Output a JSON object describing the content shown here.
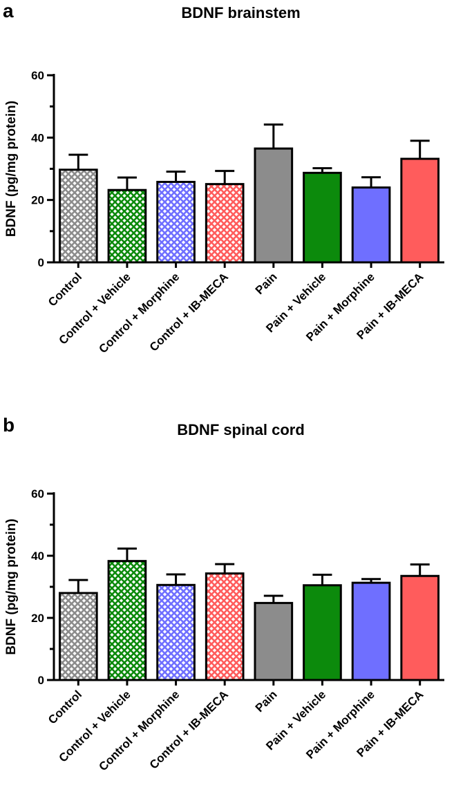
{
  "chart_data": [
    {
      "type": "bar",
      "panel_label": "a",
      "title": "BDNF brainstem",
      "xlabel": "",
      "ylabel": "BDNF (pg/mg protein)",
      "ylim": [
        0,
        60
      ],
      "yticks": [
        0,
        20,
        40,
        60
      ],
      "categories": [
        "Control",
        "Control + Vehicle",
        "Control + Morphine",
        "Control + IB-MECA",
        "Pain",
        "Pain + Vehicle",
        "Pain + Morphine",
        "Pain + IB-MECA"
      ],
      "values": [
        29.7,
        23.2,
        25.8,
        25.1,
        36.5,
        28.7,
        24.0,
        33.2
      ],
      "errors": [
        4.8,
        4.0,
        3.3,
        4.2,
        7.7,
        1.5,
        3.3,
        5.8
      ],
      "colors": [
        "#8c8c8c",
        "#0c8a0c",
        "#6f6fff",
        "#ff5c5c",
        "#8c8c8c",
        "#0c8a0c",
        "#6f6fff",
        "#ff5c5c"
      ],
      "hatched": [
        true,
        true,
        true,
        true,
        false,
        false,
        false,
        false
      ],
      "grid": false,
      "legend": "none"
    },
    {
      "type": "bar",
      "panel_label": "b",
      "title": "BDNF spinal cord",
      "xlabel": "",
      "ylabel": "BDNF (pg/mg protein)",
      "ylim": [
        0,
        60
      ],
      "yticks": [
        0,
        20,
        40,
        60
      ],
      "categories": [
        "Control",
        "Control + Vehicle",
        "Control + Morphine",
        "Control + IB-MECA",
        "Pain",
        "Pain + Vehicle",
        "Pain + Morphine",
        "Pain + IB-MECA"
      ],
      "values": [
        28.0,
        38.3,
        30.6,
        34.3,
        24.8,
        30.5,
        31.3,
        33.5
      ],
      "errors": [
        4.2,
        4.0,
        3.4,
        3.0,
        2.3,
        3.4,
        1.2,
        3.7
      ],
      "colors": [
        "#8c8c8c",
        "#0c8a0c",
        "#6f6fff",
        "#ff5c5c",
        "#8c8c8c",
        "#0c8a0c",
        "#6f6fff",
        "#ff5c5c"
      ],
      "hatched": [
        true,
        true,
        true,
        true,
        false,
        false,
        false,
        false
      ],
      "grid": false,
      "legend": "none"
    }
  ]
}
